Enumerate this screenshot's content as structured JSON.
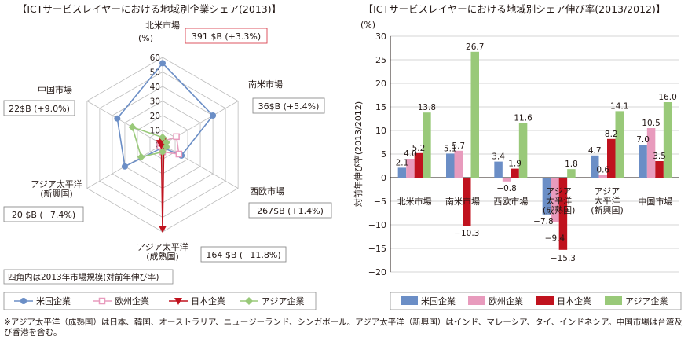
{
  "footnote": "※アジア太平洋（成熟国）は日本、韓国、オーストラリア、ニュージーランド、シンガポール。アジア太平洋（新興国）はインド、マレーシア、タイ、インドネシア。中国市場は台湾及び香港を含む。",
  "chart_data": [
    {
      "type": "radar",
      "title": "【ICTサービスレイヤーにおける地域別企業シェア(2013)】",
      "unit": "(%)",
      "axis_ticks": [
        0,
        10,
        20,
        30,
        40,
        50,
        60
      ],
      "rlim": [
        0,
        60
      ],
      "categories": [
        "北米市場",
        "南米市場",
        "西欧市場",
        "アジア太平洋\n(成熟国)",
        "アジア太平洋\n(新興国)",
        "中国市場"
      ],
      "market_boxes": [
        "391 $B (+3.3%)",
        "36$B (+5.4%)",
        "267$B (+1.4%)",
        "164 $B (−11.8%)",
        "20 $B (−7.4%)",
        "22$B (+9.0%)"
      ],
      "box_note": "四角内は2013年市場規模(対前年伸び率)",
      "series": [
        {
          "name": "米国企業",
          "color": "#6b8ec6",
          "marker": "circle",
          "values": [
            56,
            40,
            15,
            2,
            30,
            36
          ]
        },
        {
          "name": "欧州企業",
          "color": "#e89bbd",
          "marker": "square",
          "values": [
            2,
            11,
            13,
            5,
            2,
            2
          ]
        },
        {
          "name": "日本企業",
          "color": "#c0121e",
          "marker": "triangle-down",
          "values": [
            2,
            1,
            1,
            58,
            1,
            2
          ]
        },
        {
          "name": "アジア企業",
          "color": "#99c979",
          "marker": "diamond",
          "values": [
            5,
            3,
            3,
            5,
            17,
            24
          ]
        }
      ],
      "legend_position": "bottom"
    },
    {
      "type": "bar",
      "title": "【ICTサービスレイヤーにおける地域別シェア伸び率(2013/2012)】",
      "unit": "(%)",
      "ylabel": "対前年伸び率(2013/2012)",
      "ylim": [
        -20,
        30
      ],
      "yticks": [
        30,
        25,
        20,
        15,
        10,
        5,
        0,
        -5,
        -10,
        -15,
        -20
      ],
      "ytick_labels": [
        "30",
        "25",
        "20",
        "15",
        "10",
        "5",
        "0",
        "−5",
        "−10",
        "−15",
        "−20"
      ],
      "categories": [
        "北米市場",
        "南米市場",
        "西欧市場",
        "アジア\n太平洋\n(成熟国)",
        "アジア\n太平洋\n(新興国)",
        "中国市場"
      ],
      "series": [
        {
          "name": "米国企業",
          "color": "#6b8ec6",
          "values": [
            2.1,
            5.1,
            3.4,
            -7.8,
            4.7,
            7.0
          ],
          "labels": [
            "2.1",
            "5.1",
            "3.4",
            "−7.8",
            "4.7",
            "7.0"
          ]
        },
        {
          "name": "欧州企業",
          "color": "#e89bbd",
          "values": [
            4.0,
            5.7,
            -0.8,
            -9.4,
            0.6,
            10.5
          ],
          "labels": [
            "4.0",
            "5.7",
            "−0.8",
            "−9.4",
            "0.6",
            "10.5"
          ]
        },
        {
          "name": "日本企業",
          "color": "#c0121e",
          "values": [
            5.2,
            -10.3,
            1.9,
            -15.3,
            8.2,
            3.5
          ],
          "labels": [
            "5.2",
            "−10.3",
            "1.9",
            "−15.3",
            "8.2",
            "3.5"
          ]
        },
        {
          "name": "アジア企業",
          "color": "#99c979",
          "values": [
            13.8,
            26.7,
            11.6,
            1.8,
            14.1,
            16.0
          ],
          "labels": [
            "13.8",
            "26.7",
            "11.6",
            "1.8",
            "14.1",
            "16.0"
          ]
        }
      ],
      "grid": true,
      "legend_position": "bottom"
    }
  ]
}
